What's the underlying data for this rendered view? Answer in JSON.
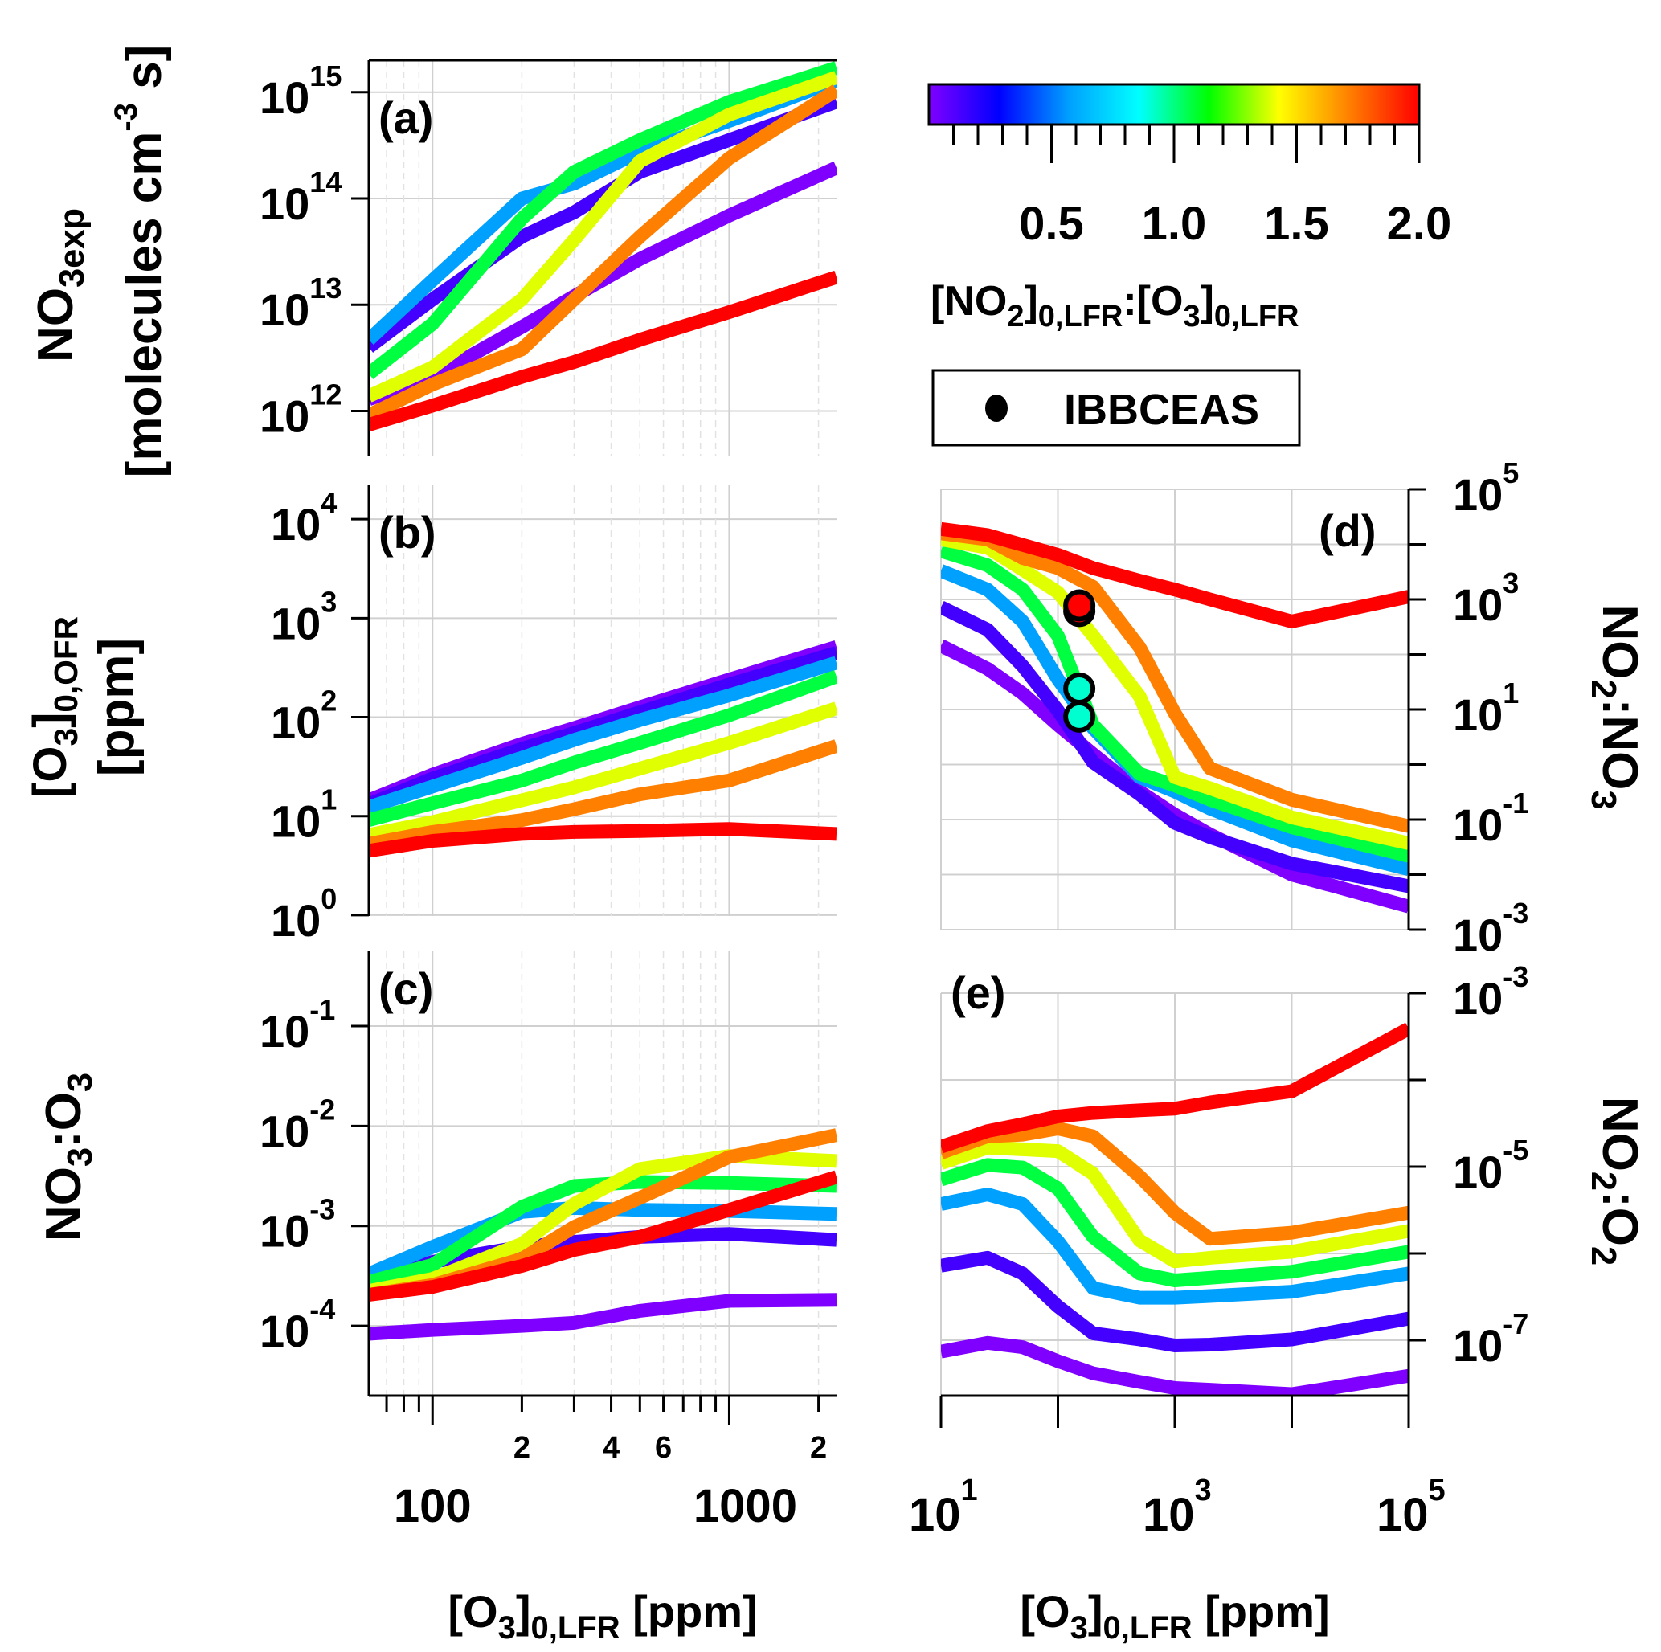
{
  "chart_data": {
    "type": "line",
    "figure": "multi-panel log-log line plots colored by [NO2]0,LFR:[O3]0,LFR ratio",
    "colorbar": {
      "title_parts": [
        "[NO",
        "2",
        "]",
        "0,LFR",
        ":[O",
        "3",
        "]",
        "0,LFR"
      ],
      "range": [
        0,
        2.0
      ],
      "tick_labels": [
        "0.5",
        "1.0",
        "1.5",
        "2.0"
      ],
      "tick_values": [
        0.5,
        1.0,
        1.5,
        2.0
      ],
      "minor_step": 0.1,
      "colormap_stops": [
        "#8000ff",
        "#0000ff",
        "#00a0ff",
        "#00ffff",
        "#00ff00",
        "#ffff00",
        "#ff8000",
        "#ff0000"
      ]
    },
    "legend": {
      "entries": [
        {
          "label": "IBBCEAS",
          "marker": "filled-circle",
          "color": "#000000"
        }
      ],
      "position": "top-right"
    },
    "series_styles": [
      {
        "name": "violet",
        "color": "#8000ff",
        "approx_ratio": 0.01
      },
      {
        "name": "blue-violet",
        "color": "#4400ff",
        "approx_ratio": 0.2
      },
      {
        "name": "sky-blue",
        "color": "#00a0ff",
        "approx_ratio": 0.5
      },
      {
        "name": "green",
        "color": "#00ff40",
        "approx_ratio": 1.0
      },
      {
        "name": "yellow",
        "color": "#e0ff00",
        "approx_ratio": 1.5
      },
      {
        "name": "orange",
        "color": "#ff7f00",
        "approx_ratio": 1.8
      },
      {
        "name": "red",
        "color": "#ff0000",
        "approx_ratio": 2.0
      }
    ],
    "panels": [
      {
        "id": "a",
        "label": "(a)",
        "type": "line",
        "xscale": "log",
        "yscale": "log",
        "xlim": [
          61,
          2300
        ],
        "ylim": [
          380000000000.0,
          2000000000000000.0
        ],
        "ylabel_parts": [
          "NO",
          "3exp"
        ],
        "ylabel2_parts": [
          "[molecules cm",
          "-3",
          " s]"
        ],
        "yticks": [
          {
            "exp": "12"
          },
          {
            "exp": "13"
          },
          {
            "exp": "14"
          },
          {
            "exp": "15"
          }
        ],
        "x": [
          61,
          100,
          200,
          300,
          500,
          1000,
          2300
        ],
        "series_log10": [
          [
            12.11,
            12.32,
            12.79,
            13.08,
            13.43,
            13.84,
            14.29
          ],
          [
            12.6,
            13.05,
            13.64,
            13.87,
            14.25,
            14.55,
            14.91
          ],
          [
            12.67,
            13.23,
            14.0,
            14.14,
            14.44,
            14.73,
            15.11
          ],
          [
            12.35,
            12.82,
            13.81,
            14.25,
            14.55,
            14.91,
            15.23
          ],
          [
            12.14,
            12.41,
            13.05,
            13.61,
            14.35,
            14.79,
            15.14
          ],
          [
            11.96,
            12.25,
            12.58,
            13.05,
            13.64,
            14.38,
            15.02
          ],
          [
            11.87,
            12.05,
            12.32,
            12.46,
            12.67,
            12.93,
            13.26
          ]
        ]
      },
      {
        "id": "b",
        "label": "(b)",
        "type": "line",
        "xscale": "log",
        "yscale": "log",
        "xlim": [
          61,
          2300
        ],
        "ylim": [
          0.98,
          22000
        ],
        "ylabel_parts": [
          "[O",
          "3",
          "]",
          "0,OFR"
        ],
        "ylabel2_parts": [
          "[ppm]"
        ],
        "yticks": [
          {
            "exp": "0"
          },
          {
            "exp": "1"
          },
          {
            "exp": "2"
          },
          {
            "exp": "3"
          },
          {
            "exp": "4"
          }
        ],
        "x": [
          61,
          100,
          200,
          300,
          500,
          1000,
          2300
        ],
        "series_log10": [
          [
            1.16,
            1.42,
            1.73,
            1.89,
            2.1,
            2.38,
            2.71
          ],
          [
            1.12,
            1.38,
            1.68,
            1.84,
            2.05,
            2.33,
            2.65
          ],
          [
            1.09,
            1.3,
            1.59,
            1.77,
            1.97,
            2.22,
            2.55
          ],
          [
            0.96,
            1.13,
            1.36,
            1.54,
            1.74,
            2.02,
            2.41
          ],
          [
            0.81,
            0.94,
            1.16,
            1.29,
            1.48,
            1.74,
            2.09
          ],
          [
            0.72,
            0.84,
            0.96,
            1.07,
            1.22,
            1.36,
            1.71
          ],
          [
            0.65,
            0.75,
            0.82,
            0.84,
            0.85,
            0.87,
            0.82
          ]
        ]
      },
      {
        "id": "c",
        "label": "(c)",
        "type": "line",
        "xscale": "log",
        "yscale": "log",
        "xlim": [
          61,
          2300
        ],
        "ylim": [
          2e-05,
          0.56
        ],
        "xlabel_parts": [
          "[O",
          "3",
          "]",
          "0,LFR",
          " [ppm]"
        ],
        "ylabel_parts": [
          "NO",
          "3",
          ":O",
          "3"
        ],
        "yticks": [
          {
            "exp": "-4"
          },
          {
            "exp": "-3"
          },
          {
            "exp": "-2"
          },
          {
            "exp": "-1"
          }
        ],
        "xtick_major_labels": [
          "100",
          "1000"
        ],
        "xtick_minor_labels": [
          "2",
          "4",
          "6",
          "2"
        ],
        "x": [
          61,
          100,
          200,
          300,
          500,
          1000,
          2300
        ],
        "series_log10": [
          [
            -4.08,
            -4.04,
            -4.0,
            -3.97,
            -3.85,
            -3.75,
            -3.74
          ],
          [
            -3.56,
            -3.36,
            -3.21,
            -3.16,
            -3.11,
            -3.08,
            -3.14
          ],
          [
            -3.48,
            -3.21,
            -2.86,
            -2.82,
            -2.84,
            -2.85,
            -2.88
          ],
          [
            -3.56,
            -3.39,
            -2.81,
            -2.6,
            -2.56,
            -2.57,
            -2.6
          ],
          [
            -3.65,
            -3.53,
            -3.18,
            -2.78,
            -2.43,
            -2.3,
            -2.35
          ],
          [
            -3.69,
            -3.59,
            -3.33,
            -3.01,
            -2.72,
            -2.31,
            -2.09
          ],
          [
            -3.69,
            -3.61,
            -3.4,
            -3.24,
            -3.11,
            -2.84,
            -2.51
          ]
        ]
      },
      {
        "id": "d",
        "label": "(d)",
        "type": "line",
        "xscale": "log",
        "yscale": "log",
        "xlim": [
          10,
          100000
        ],
        "ylim": [
          0.001,
          100000
        ],
        "ylabel_parts": [
          "NO",
          "2",
          ":NO",
          "3"
        ],
        "yticks": [
          {
            "exp": "-3"
          },
          {
            "exp": "-1"
          },
          {
            "exp": "1"
          },
          {
            "exp": "3"
          },
          {
            "exp": "5"
          }
        ],
        "x": [
          10,
          25,
          50,
          100,
          200,
          500,
          1000,
          2000,
          10000,
          100000
        ],
        "series_log10": [
          [
            2.16,
            1.74,
            1.29,
            0.72,
            0.19,
            -0.49,
            -0.91,
            -1.27,
            -2.0,
            -2.58
          ],
          [
            2.86,
            2.45,
            1.79,
            0.98,
            0.04,
            -0.54,
            -1.06,
            -1.32,
            -1.8,
            -2.21
          ],
          [
            3.52,
            3.18,
            2.6,
            1.55,
            0.66,
            -0.23,
            -0.49,
            -0.8,
            -1.38,
            -1.9
          ],
          [
            3.88,
            3.62,
            3.18,
            2.34,
            0.72,
            -0.17,
            -0.38,
            -0.64,
            -1.14,
            -1.66
          ],
          [
            4.09,
            3.94,
            3.54,
            3.13,
            2.34,
            1.24,
            -0.23,
            -0.43,
            -0.96,
            -1.43
          ],
          [
            4.2,
            4.09,
            3.75,
            3.57,
            3.23,
            2.13,
            0.93,
            -0.07,
            -0.64,
            -1.12
          ],
          [
            4.28,
            4.17,
            3.99,
            3.81,
            3.57,
            3.34,
            3.18,
            3.0,
            2.6,
            3.05
          ]
        ],
        "ibbceas_points": [
          {
            "x": 150,
            "y_log10": 2.79,
            "color": "#ff0000"
          },
          {
            "x": 150,
            "y_log10": 2.89,
            "color": "#ff0000"
          },
          {
            "x": 150,
            "y_log10": 1.38,
            "color": "#00ffd0"
          },
          {
            "x": 150,
            "y_log10": 0.87,
            "color": "#00ffd0"
          }
        ]
      },
      {
        "id": "e",
        "label": "(e)",
        "type": "line",
        "xscale": "log",
        "yscale": "log",
        "xlim": [
          10,
          100000
        ],
        "ylim": [
          2.3e-08,
          0.001
        ],
        "xlabel_parts": [
          "[O",
          "3",
          "]",
          "0,LFR",
          " [ppm]"
        ],
        "ylabel_parts": [
          "NO",
          "2",
          ":O",
          "2"
        ],
        "yticks": [
          {
            "exp": "-7"
          },
          {
            "exp": "-5"
          },
          {
            "exp": "-3"
          }
        ],
        "xticks": [
          {
            "exp": "1"
          },
          {
            "exp": "3"
          },
          {
            "exp": "5"
          }
        ],
        "x": [
          10,
          25,
          50,
          100,
          200,
          500,
          1000,
          2000,
          10000,
          100000
        ],
        "series_log10": [
          [
            -7.13,
            -7.03,
            -7.08,
            -7.24,
            -7.38,
            -7.48,
            -7.55,
            -7.57,
            -7.62,
            -7.41
          ],
          [
            -6.14,
            -6.05,
            -6.23,
            -6.61,
            -6.92,
            -6.99,
            -7.06,
            -7.05,
            -6.99,
            -6.75
          ],
          [
            -5.43,
            -5.32,
            -5.43,
            -5.86,
            -6.4,
            -6.51,
            -6.51,
            -6.49,
            -6.44,
            -6.23
          ],
          [
            -5.15,
            -4.98,
            -5.01,
            -5.25,
            -5.81,
            -6.23,
            -6.31,
            -6.28,
            -6.21,
            -5.98
          ],
          [
            -4.96,
            -4.78,
            -4.8,
            -4.82,
            -5.08,
            -5.85,
            -6.09,
            -6.05,
            -5.98,
            -5.74
          ],
          [
            -4.84,
            -4.65,
            -4.63,
            -4.56,
            -4.65,
            -5.11,
            -5.53,
            -5.83,
            -5.76,
            -5.53
          ],
          [
            -4.77,
            -4.59,
            -4.51,
            -4.42,
            -4.38,
            -4.35,
            -4.33,
            -4.26,
            -4.13,
            -3.41
          ]
        ]
      }
    ]
  }
}
